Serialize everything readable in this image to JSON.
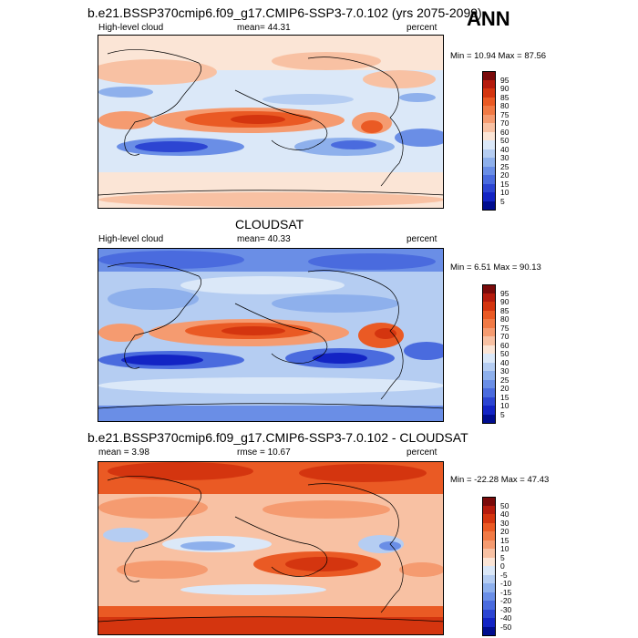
{
  "season": "ANN",
  "panels": [
    {
      "title": "b.e21.BSSP370cmip6.f09_g17.CMIP6-SSP3-7.0.102 (yrs 2075-2099)",
      "left_label": "High-level cloud",
      "center_label": "mean=  44.31",
      "right_label": "percent",
      "minmax": "Min =  10.94 Max =  87.56",
      "colorbar": {
        "levels": [
          "95",
          "90",
          "85",
          "80",
          "75",
          "70",
          "60",
          "50",
          "40",
          "30",
          "25",
          "20",
          "15",
          "10",
          "5"
        ],
        "colors": [
          "#7a0a0a",
          "#b51b0d",
          "#d4350f",
          "#ea5a24",
          "#f17a45",
          "#f59b70",
          "#f8c1a3",
          "#fbe5d6",
          "#dbe8f8",
          "#b5cdf2",
          "#8eb0ec",
          "#6a8ee6",
          "#4a6bde",
          "#2c45d2",
          "#1324c4",
          "#000d8f"
        ]
      }
    },
    {
      "title": "CLOUDSAT",
      "left_label": "High-level cloud",
      "center_label": "mean=  40.33",
      "right_label": "percent",
      "minmax": "Min =  6.51 Max =  90.13",
      "colorbar": {
        "levels": [
          "95",
          "90",
          "85",
          "80",
          "75",
          "70",
          "60",
          "50",
          "40",
          "30",
          "25",
          "20",
          "15",
          "10",
          "5"
        ],
        "colors": [
          "#7a0a0a",
          "#b51b0d",
          "#d4350f",
          "#ea5a24",
          "#f17a45",
          "#f59b70",
          "#f8c1a3",
          "#fbe5d6",
          "#dbe8f8",
          "#b5cdf2",
          "#8eb0ec",
          "#6a8ee6",
          "#4a6bde",
          "#2c45d2",
          "#1324c4",
          "#000d8f"
        ]
      }
    },
    {
      "title": "b.e21.BSSP370cmip6.f09_g17.CMIP6-SSP3-7.0.102 - CLOUDSAT",
      "left_label": "mean =   3.98",
      "center_label": "rmse =  10.67",
      "right_label": "percent",
      "minmax": "Min = -22.28 Max =  47.43",
      "colorbar": {
        "levels": [
          "50",
          "40",
          "30",
          "20",
          "15",
          "10",
          "5",
          "0",
          "-5",
          "-10",
          "-15",
          "-20",
          "-30",
          "-40",
          "-50"
        ],
        "colors": [
          "#7a0a0a",
          "#b51b0d",
          "#d4350f",
          "#ea5a24",
          "#f17a45",
          "#f59b70",
          "#f8c1a3",
          "#fbe5d6",
          "#dbe8f8",
          "#b5cdf2",
          "#8eb0ec",
          "#6a8ee6",
          "#4a6bde",
          "#2c45d2",
          "#1324c4",
          "#000d8f"
        ]
      }
    }
  ]
}
